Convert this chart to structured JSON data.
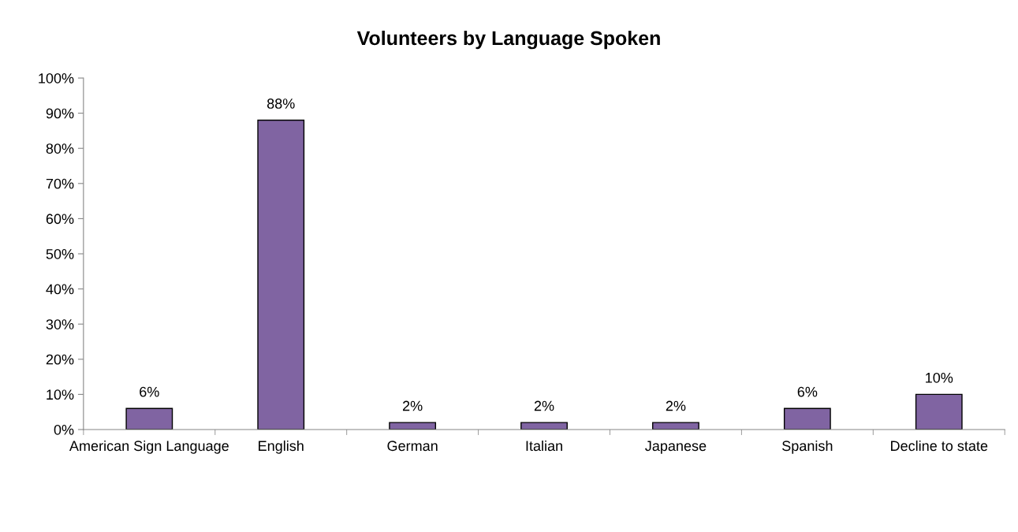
{
  "chart_data": {
    "type": "bar",
    "title": "Volunteers by Language Spoken",
    "categories": [
      "American Sign Language",
      "English",
      "German",
      "Italian",
      "Japanese",
      "Spanish",
      "Decline to state"
    ],
    "values": [
      6,
      88,
      2,
      2,
      2,
      6,
      10
    ],
    "value_labels": [
      "6%",
      "88%",
      "2%",
      "2%",
      "2%",
      "6%",
      "10%"
    ],
    "color": "#8064a2",
    "ylim": [
      0,
      100
    ],
    "yticks": [
      {
        "value": 0,
        "label": "0%"
      },
      {
        "value": 10,
        "label": "10%"
      },
      {
        "value": 20,
        "label": "20%"
      },
      {
        "value": 30,
        "label": "30%"
      },
      {
        "value": 40,
        "label": "40%"
      },
      {
        "value": 50,
        "label": "50%"
      },
      {
        "value": 60,
        "label": "60%"
      },
      {
        "value": 70,
        "label": "70%"
      },
      {
        "value": 80,
        "label": "80%"
      },
      {
        "value": 90,
        "label": "90%"
      },
      {
        "value": 100,
        "label": "100%"
      }
    ],
    "grid": false
  }
}
